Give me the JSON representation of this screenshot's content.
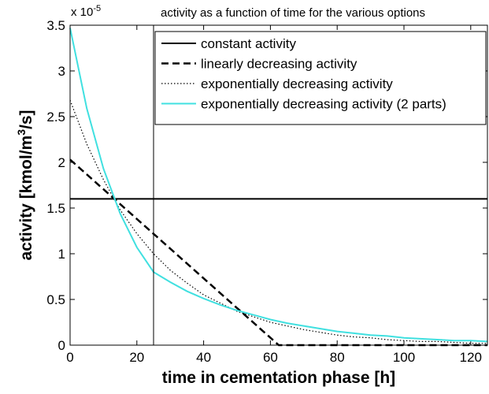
{
  "chart_data": {
    "type": "line",
    "title": "activity as a function of time for the various options",
    "y_multiplier_base": "x 10",
    "y_multiplier_exponent": "-5",
    "xlabel": "time in cementation phase [h]",
    "ylabel": [
      "activity [kmol/m",
      "3",
      "/s]"
    ],
    "xlim": [
      0,
      125
    ],
    "ylim": [
      0,
      3.5
    ],
    "xticks": [
      0,
      20,
      40,
      60,
      80,
      100,
      120
    ],
    "yticks": [
      0,
      0.5,
      1,
      1.5,
      2,
      2.5,
      3,
      3.5
    ],
    "vline": 25,
    "legend": "upper right",
    "series": [
      {
        "name": "constant activity",
        "color": "#000000",
        "style": "solid",
        "x": [
          0,
          125
        ],
        "values": [
          1.6,
          1.6
        ]
      },
      {
        "name": "linearly decreasing activity",
        "color": "#000000",
        "style": "dashed",
        "x": [
          0,
          62.5,
          125
        ],
        "values": [
          2.03,
          0,
          0
        ]
      },
      {
        "name": "exponentially decreasing activity",
        "color": "#000000",
        "style": "dotted",
        "x": [
          0,
          5,
          10,
          15,
          20,
          25,
          30,
          35,
          40,
          45,
          50,
          55,
          60,
          65,
          70,
          75,
          80,
          85,
          90,
          95,
          100,
          105,
          110,
          115,
          120,
          125
        ],
        "values": [
          2.68,
          2.2,
          1.81,
          1.48,
          1.22,
          1.0,
          0.82,
          0.68,
          0.55,
          0.46,
          0.37,
          0.31,
          0.25,
          0.21,
          0.17,
          0.14,
          0.11,
          0.09,
          0.08,
          0.06,
          0.05,
          0.04,
          0.04,
          0.03,
          0.02,
          0.02
        ]
      },
      {
        "name": "exponentially decreasing activity (2 parts)",
        "color": "#40e0e0",
        "style": "solid",
        "x": [
          0,
          5,
          10,
          15,
          20,
          25,
          30,
          35,
          40,
          45,
          50,
          55,
          60,
          65,
          70,
          75,
          80,
          85,
          90,
          95,
          100,
          105,
          110,
          115,
          120,
          125
        ],
        "values": [
          3.47,
          2.59,
          1.93,
          1.44,
          1.07,
          0.8,
          0.69,
          0.59,
          0.51,
          0.44,
          0.38,
          0.33,
          0.28,
          0.24,
          0.21,
          0.18,
          0.15,
          0.13,
          0.11,
          0.1,
          0.08,
          0.07,
          0.06,
          0.05,
          0.05,
          0.04
        ]
      }
    ]
  }
}
